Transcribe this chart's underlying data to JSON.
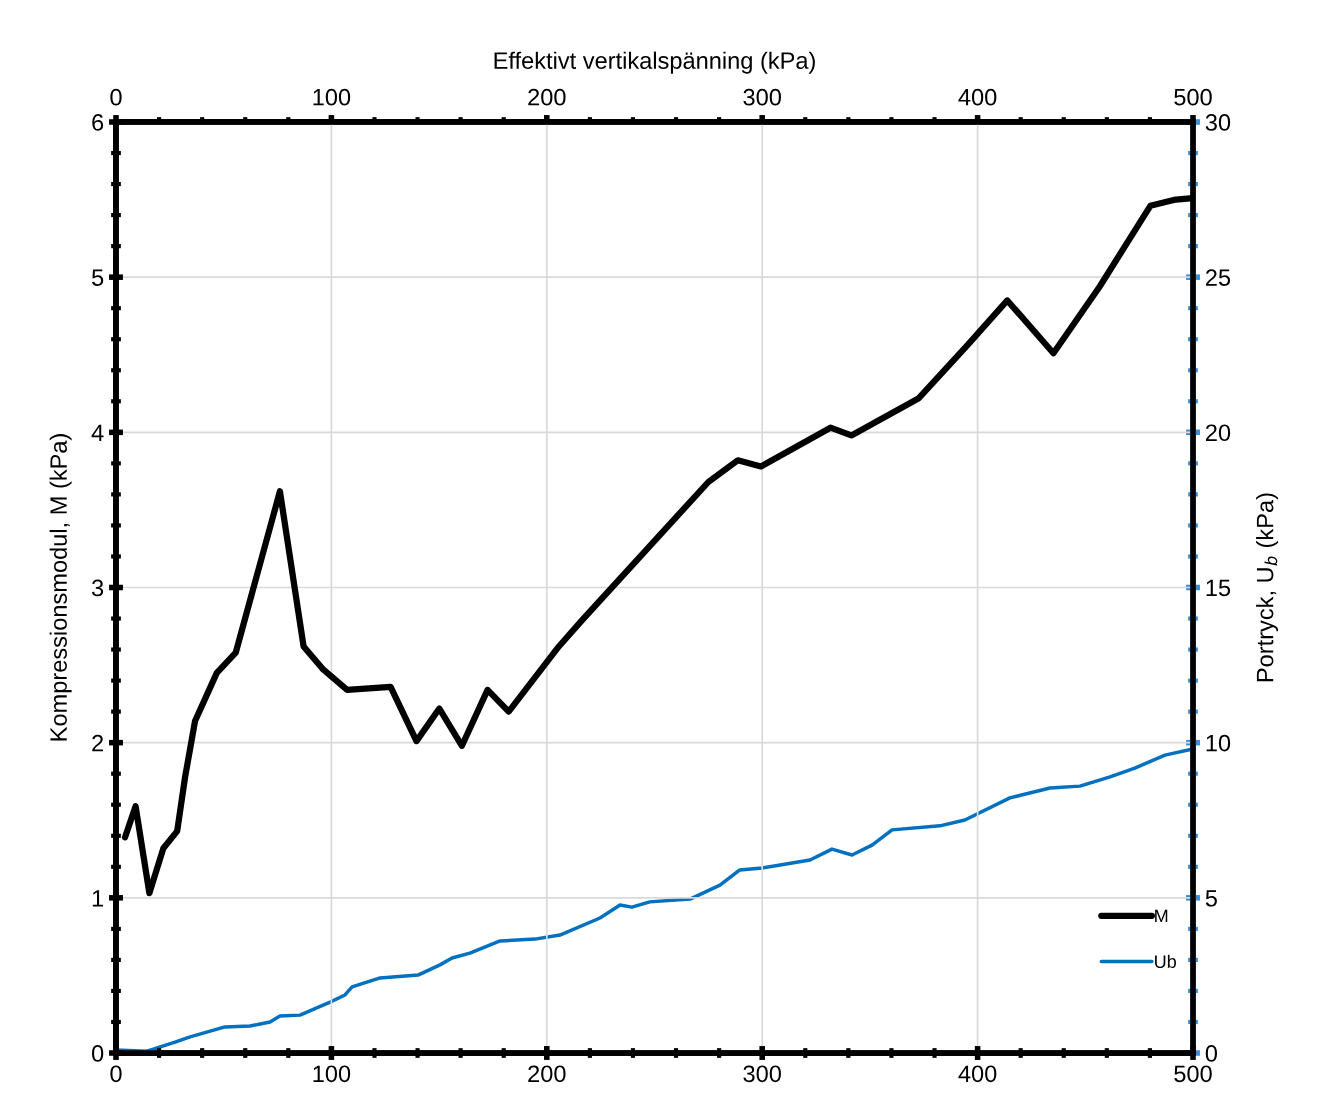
{
  "chart_data": {
    "type": "line",
    "x2label": "Effektivt vertikalspänning (kPa)",
    "ylabel": "Kompressionsmodul, M (kPa)",
    "y2label": "Portryck, U$_{b}$ (kPa)",
    "xlim": [
      0,
      500
    ],
    "xticks": [
      0,
      100,
      200,
      300,
      400,
      500
    ],
    "x2lim": [
      0,
      500
    ],
    "x2ticks": [
      0,
      100,
      200,
      300,
      400,
      500
    ],
    "ylim": [
      0,
      6
    ],
    "yticks": [
      0,
      1,
      2,
      3,
      4,
      5,
      6
    ],
    "y2lim": [
      0,
      30
    ],
    "y2ticks": [
      0,
      5,
      10,
      15,
      20,
      25,
      30
    ],
    "grid": true,
    "legend": "bottom right",
    "marker": "none",
    "line_style": "solid",
    "series": [
      {
        "name": "M",
        "color": "#000000",
        "x": [
          4.2,
          9.1,
          15.5,
          22,
          28.4,
          32.1,
          36.7,
          46.8,
          55.6,
          76.1,
          87.1,
          96.3,
          107.3,
          127.5,
          139.5,
          150.1,
          160.6,
          172.5,
          182.3,
          205.6,
          216.4,
          275,
          288.7,
          299.4,
          331.7,
          341.4,
          372.7,
          395.2,
          413.8,
          435.2,
          456.7,
          480.2,
          492,
          500
        ],
        "values": [
          1.39,
          1.59,
          1.03,
          1.32,
          1.43,
          1.78,
          2.14,
          2.45,
          2.58,
          3.62,
          2.62,
          2.47,
          2.34,
          2.36,
          2.01,
          2.22,
          1.98,
          2.34,
          2.2,
          2.62,
          2.79,
          3.68,
          3.82,
          3.78,
          4.03,
          3.98,
          4.22,
          4.56,
          4.85,
          4.51,
          4.94,
          5.46,
          5.5,
          5.51
        ]
      },
      {
        "name": "Ub",
        "color": "#0070c0",
        "axis": "y2",
        "x": [
          0,
          14.4,
          27.4,
          34.4,
          50.6,
          62.2,
          71.5,
          76.1,
          85.4,
          99.4,
          106.3,
          109.6,
          122.6,
          140.2,
          150.4,
          156,
          164.3,
          178.3,
          194.5,
          206.1,
          224.7,
          234,
          239.5,
          247.8,
          266.5,
          280.4,
          289.6,
          299.9,
          322.2,
          332.4,
          341.7,
          351,
          360.3,
          382.5,
          394.1,
          415,
          433.6,
          447.5,
          461.5,
          473,
          487,
          500
        ],
        "values": [
          0.1,
          0.06,
          0.35,
          0.52,
          0.84,
          0.87,
          1.0,
          1.19,
          1.22,
          1.64,
          1.87,
          2.13,
          2.42,
          2.51,
          2.84,
          3.06,
          3.22,
          3.61,
          3.67,
          3.8,
          4.35,
          4.77,
          4.7,
          4.87,
          4.96,
          5.41,
          5.9,
          5.96,
          6.22,
          6.57,
          6.38,
          6.7,
          7.19,
          7.32,
          7.51,
          8.22,
          8.54,
          8.6,
          8.9,
          9.18,
          9.6,
          9.8
        ]
      }
    ]
  }
}
